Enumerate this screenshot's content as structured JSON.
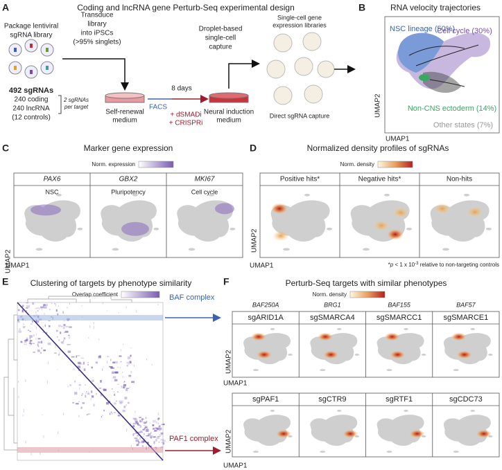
{
  "panel_a": {
    "letter": "A",
    "title": "Coding and lncRNA gene Perturb-Seq experimental design",
    "package": [
      "Package lentiviral",
      "sgRNA library"
    ],
    "library": {
      "total": "492 sgRNAs",
      "coding": "240 coding",
      "lncrna": "240 lncRNA",
      "controls": "(12 controls)"
    },
    "per_target": [
      "2 sgRNAs",
      "per target"
    ],
    "transduce": [
      "Transduce",
      "library",
      "into iPSCs",
      "(>95% singlets)"
    ],
    "self_renewal": [
      "Self-renewal",
      "medium"
    ],
    "duration": "8 days",
    "facs": "FACS",
    "dsmadi": "+ dSMADi",
    "crispri": "+ CRISPRi",
    "neural": [
      "Neural induction",
      "medium"
    ],
    "droplet": [
      "Droplet-based",
      "single-cell",
      "capture"
    ],
    "libraries": [
      "Single-cell gene",
      "expression libraries"
    ],
    "capture": "Direct sgRNA capture"
  },
  "panel_b": {
    "letter": "B",
    "title": "RNA velocity trajectories",
    "states": [
      "NSC lineage (50%)",
      "Cell cycle (30%)",
      "Non-CNS ectoderm (14%)",
      "Other states (7%)"
    ],
    "y_axis": "UMAP2",
    "x_axis": "UMAP1"
  },
  "panel_c": {
    "letter": "C",
    "title": "Marker gene expression",
    "colorbar": "Norm. expression",
    "genes": [
      "PAX6",
      "GBX2",
      "MKI67"
    ],
    "states": [
      "NSC",
      "Pluripotency",
      "Cell cycle"
    ],
    "y_axis": "UMAP2",
    "x_axis": "UMAP1"
  },
  "panel_d": {
    "letter": "D",
    "title": "Normalized density profiles of sgRNAs",
    "colorbar": "Norm. density",
    "groups": [
      "Positive hits*",
      "Negative hits*",
      "Non-hits"
    ],
    "footnote": [
      "*",
      "p",
      " < 1 x 10",
      "-3",
      " relative to non-targeting controls"
    ],
    "y_axis": "UMAP2",
    "x_axis": "UMAP1"
  },
  "panel_e": {
    "letter": "E",
    "title": "Clustering of targets by phenotype similarity",
    "colorbar": "Overlap coefficient",
    "complexes": [
      "BAF complex",
      "PAF1 complex"
    ]
  },
  "panel_f": {
    "letter": "F",
    "title": "Perturb-Seq targets with similar phenotypes",
    "colorbar": "Norm. density",
    "proteins": [
      "BAF250A",
      "BRG1",
      "BAF155",
      "BAF57"
    ],
    "baf_guides": [
      "sgARID1A",
      "sgSMARCA4",
      "sgSMARCC1",
      "sgSMARCE1"
    ],
    "paf_guides": [
      "sgPAF1",
      "sgCTR9",
      "sgRTF1",
      "sgCDC73"
    ],
    "y_axis": "UMAP2",
    "x_axis": "UMAP1"
  }
}
